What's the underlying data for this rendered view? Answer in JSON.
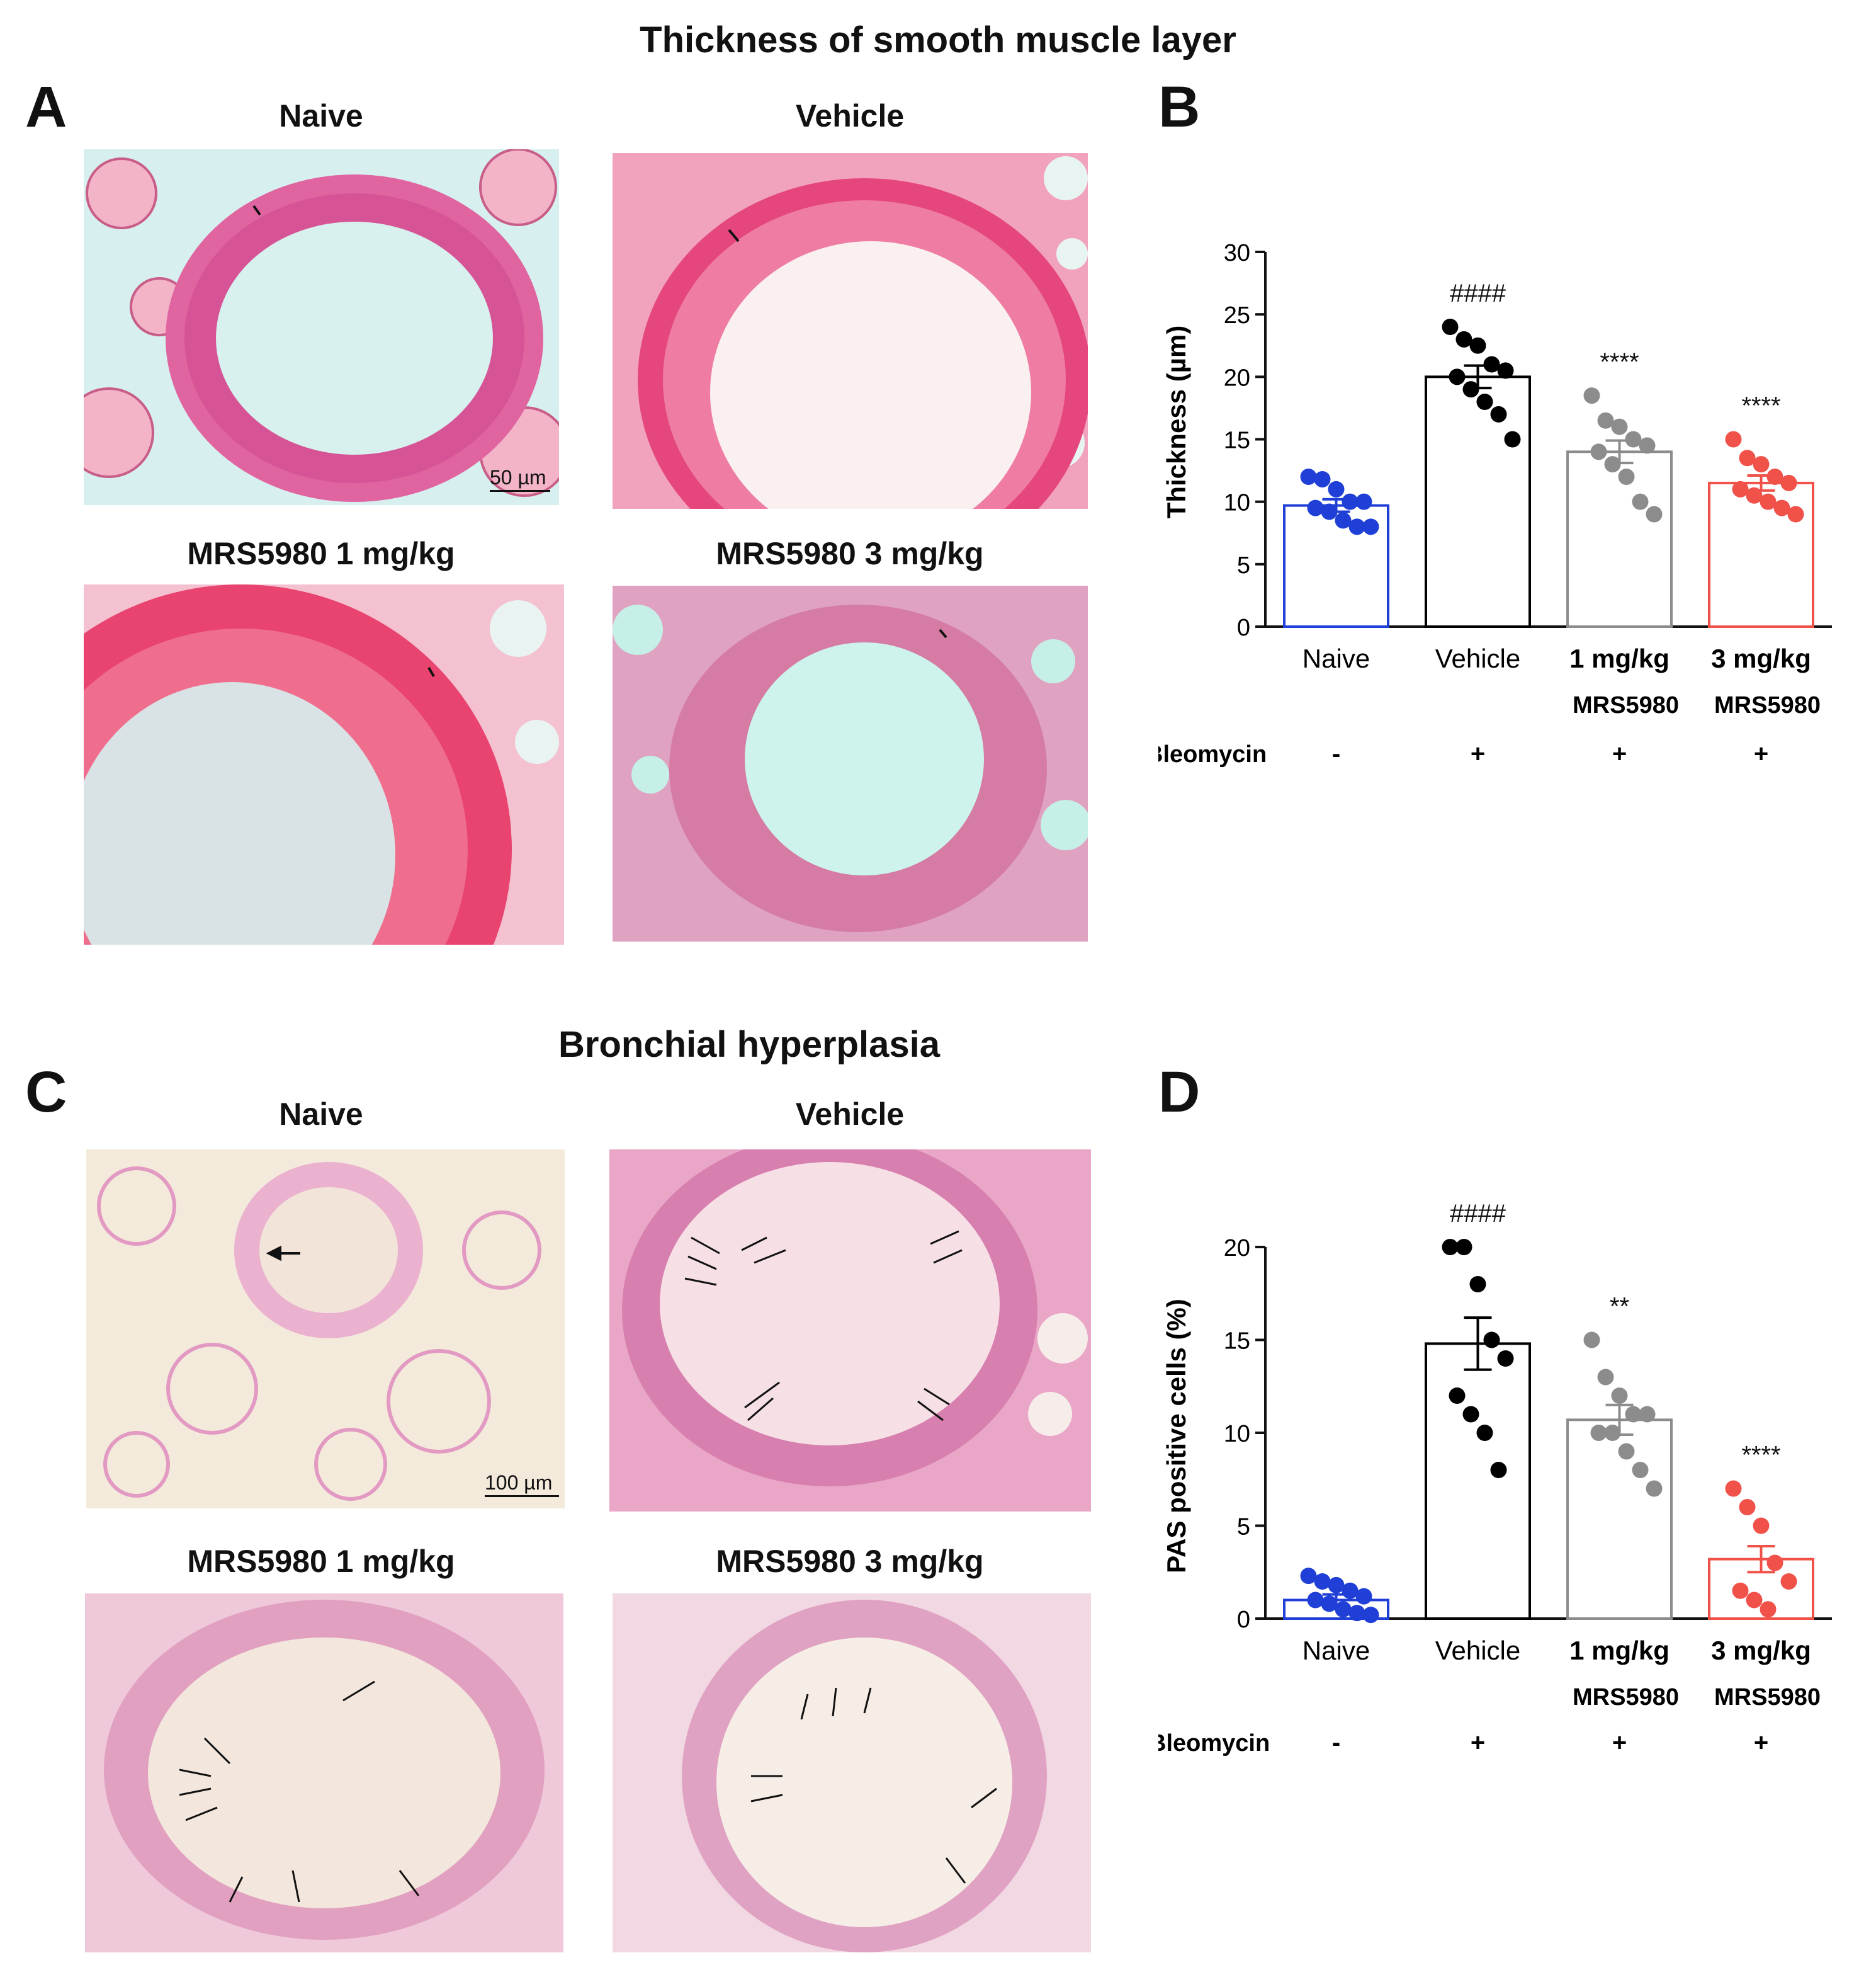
{
  "top_title": "Thickness of smooth muscle layer",
  "mid_title": "Bronchial hyperplasia",
  "panels": {
    "A": "A",
    "B": "B",
    "C": "C",
    "D": "D"
  },
  "image_titles": {
    "naive": "Naive",
    "vehicle": "Vehicle",
    "mrs1": "MRS5980 1 mg/kg",
    "mrs3": "MRS5980 3 mg/kg"
  },
  "scale_bars": {
    "a": "50 µm",
    "c": "100 µm"
  },
  "colors": {
    "naive": "#1f3fd6",
    "vehicle": "#000000",
    "mrs1": "#8c8c8c",
    "mrs3": "#f0524a",
    "he_stain": "#e8577a",
    "pas_stain": "#e9a6c6"
  },
  "chart_data": [
    {
      "type": "bar",
      "panel": "B",
      "ylabel": "Thickness (µm)",
      "ylim": [
        0,
        30
      ],
      "yticks": [
        0,
        5,
        10,
        15,
        20,
        25,
        30
      ],
      "categories": [
        [
          "Naive"
        ],
        [
          "Vehicle"
        ],
        [
          "1 mg/kg",
          "MRS5980"
        ],
        [
          "3 mg/kg",
          "MRS5980"
        ]
      ],
      "means": [
        9.7,
        20.0,
        14.0,
        11.5
      ],
      "sem": [
        0.5,
        0.9,
        0.9,
        0.6
      ],
      "points": [
        [
          12,
          11.8,
          11,
          10,
          10,
          9.5,
          9.2,
          8.5,
          8,
          8
        ],
        [
          24,
          23,
          22.5,
          21,
          20.5,
          20,
          19,
          18,
          17,
          15
        ],
        [
          18.5,
          16.5,
          16,
          15,
          14.5,
          14,
          13,
          12,
          10,
          9
        ],
        [
          15,
          13.5,
          13,
          12,
          11.5,
          11,
          10.5,
          10,
          9.5,
          9
        ]
      ],
      "annotations": [
        "",
        "####",
        "****",
        "****"
      ],
      "group_label": "Bleomycin",
      "bleomycin": [
        "-",
        "+",
        "+",
        "+"
      ]
    },
    {
      "type": "bar",
      "panel": "D",
      "ylabel": "PAS positive cells (%)",
      "ylim": [
        0,
        20
      ],
      "yticks": [
        0,
        5,
        10,
        15,
        20
      ],
      "categories": [
        [
          "Naive"
        ],
        [
          "Vehicle"
        ],
        [
          "1 mg/kg",
          "MRS5980"
        ],
        [
          "3 mg/kg",
          "MRS5980"
        ]
      ],
      "means": [
        1.0,
        14.8,
        10.7,
        3.2
      ],
      "sem": [
        0.3,
        1.4,
        0.8,
        0.7
      ],
      "points": [
        [
          2.3,
          2.0,
          1.8,
          1.5,
          1.2,
          1.0,
          0.8,
          0.5,
          0.3,
          0.2
        ],
        [
          20,
          20,
          18,
          15,
          14,
          12,
          11,
          10,
          8
        ],
        [
          15,
          13,
          12,
          11,
          11,
          10,
          10,
          9,
          8,
          7
        ],
        [
          7,
          6,
          5,
          3,
          2,
          1.5,
          1,
          0.5
        ]
      ],
      "annotations": [
        "",
        "####",
        "**",
        "****"
      ],
      "group_label": "Bleomycin",
      "bleomycin": [
        "-",
        "+",
        "+",
        "+"
      ]
    }
  ]
}
